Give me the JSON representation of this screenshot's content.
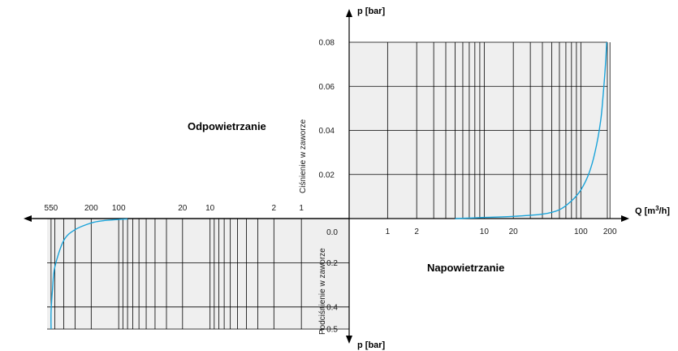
{
  "chart_data": {
    "type": "line",
    "x_axis": {
      "label": "Q [m",
      "label_sup": "3",
      "label_end": "/h]",
      "scale": "log"
    },
    "upper": {
      "y_axis_label": "p [bar]",
      "side_label": "Ciśnienie w zaworze",
      "region_label": "Napowietrzanie",
      "x_ticks": [
        {
          "value": 1,
          "label": "1"
        },
        {
          "value": 2,
          "label": "2"
        },
        {
          "value": 10,
          "label": "10"
        },
        {
          "value": 20,
          "label": "20"
        },
        {
          "value": 100,
          "label": "100"
        },
        {
          "value": 200,
          "label": "200"
        }
      ],
      "y_ticks": [
        {
          "value": 0.02,
          "label": "0.02"
        },
        {
          "value": 0.04,
          "label": "0.04"
        },
        {
          "value": 0.06,
          "label": "0.06"
        },
        {
          "value": 0.08,
          "label": "0.08"
        }
      ],
      "ylim": [
        0,
        0.08
      ],
      "xlim": [
        0.5,
        250
      ],
      "series": [
        {
          "x": [
            5,
            10,
            20,
            40,
            60,
            80,
            100,
            120,
            140,
            160,
            170,
            180,
            185
          ],
          "y": [
            0.0,
            0.0005,
            0.001,
            0.002,
            0.004,
            0.008,
            0.013,
            0.02,
            0.03,
            0.044,
            0.056,
            0.07,
            0.08
          ]
        }
      ]
    },
    "lower": {
      "y_axis_label": "p [bar]",
      "side_label": "Podciśnienie w zaworze",
      "region_label": "Odpowietrzanie",
      "x_ticks": [
        {
          "value": 1,
          "label": "1"
        },
        {
          "value": 2,
          "label": "2"
        },
        {
          "value": 10,
          "label": "10"
        },
        {
          "value": 20,
          "label": "20"
        },
        {
          "value": 100,
          "label": "100"
        },
        {
          "value": 200,
          "label": "200"
        },
        {
          "value": 550,
          "label": "550"
        }
      ],
      "y_ticks": [
        {
          "value": 0.0,
          "label": "0.0"
        },
        {
          "value": -0.2,
          "label": "– 0.2"
        },
        {
          "value": -0.4,
          "label": "– 0.4"
        },
        {
          "value": -0.5,
          "label": "– 0.5"
        }
      ],
      "ylim": [
        -0.5,
        0
      ],
      "xlim": [
        0.5,
        700
      ],
      "series": [
        {
          "x": [
            80,
            100,
            150,
            200,
            300,
            400,
            500,
            530,
            550,
            550
          ],
          "y": [
            -0.002,
            -0.004,
            -0.01,
            -0.02,
            -0.05,
            -0.1,
            -0.22,
            -0.32,
            -0.42,
            -0.5
          ]
        }
      ]
    },
    "grid": true
  }
}
